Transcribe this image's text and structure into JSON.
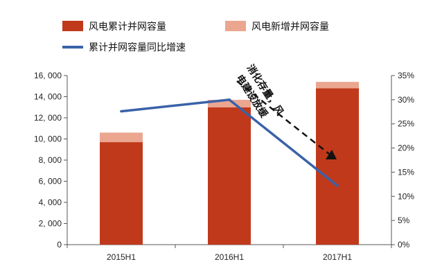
{
  "chart_data": {
    "type": "bar",
    "categories": [
      "2015H1",
      "2016H1",
      "2017H1"
    ],
    "series": [
      {
        "name": "风电累计并网容量",
        "kind": "bar-stack-base",
        "axis": "left",
        "color": "#C0391B",
        "values": [
          9700,
          13000,
          14800
        ]
      },
      {
        "name": "风电新增并网容量",
        "kind": "bar-stack-top",
        "axis": "left",
        "color": "#EBA690",
        "values": [
          900,
          700,
          600
        ]
      },
      {
        "name": "累计并网容量同比增速",
        "kind": "line",
        "axis": "right",
        "color": "#3A62A8",
        "values": [
          27.6,
          30.0,
          12.2
        ]
      }
    ],
    "y_left": {
      "min": 0,
      "max": 16000,
      "step": 2000,
      "tick_labels": [
        "0",
        "2, 000",
        "4, 000",
        "6, 000",
        "8, 000",
        "10, 000",
        "12, 000",
        "14, 000",
        "16, 000"
      ]
    },
    "y_right": {
      "min": 0,
      "max": 35,
      "step": 5,
      "tick_labels": [
        "0%",
        "5%",
        "10%",
        "15%",
        "20%",
        "25%",
        "30%",
        "35%"
      ]
    },
    "title": "",
    "xlabel": "",
    "ylabel": "",
    "grid": false,
    "legend_placement": "top",
    "annotation": {
      "lines": [
        "消化存量，风",
        "电建设放缓"
      ],
      "arrow": "dashed"
    }
  }
}
